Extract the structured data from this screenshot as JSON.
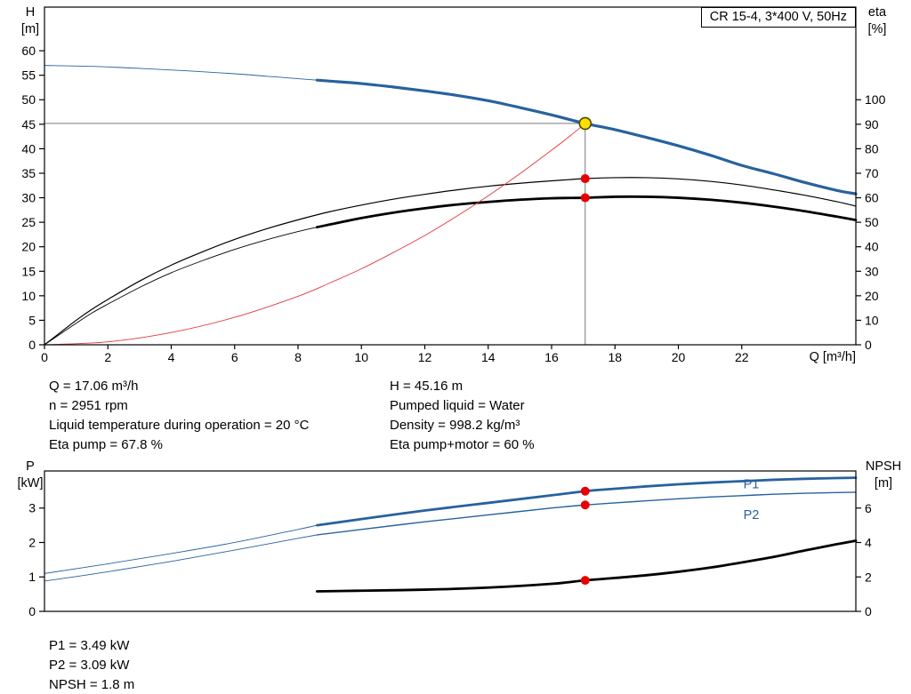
{
  "details": {
    "left": [
      "Q = 17.06 m³/h",
      "n = 2951 rpm",
      "Liquid temperature during operation = 20 °C",
      "Eta pump = 67.8 %"
    ],
    "right": [
      "H = 45.16 m",
      "Pumped liquid = Water",
      "Density = 998.2 kg/m³",
      "Eta pump+motor = 60 %"
    ],
    "bottom": [
      "P1 = 3.49 kW",
      "P2 = 3.09 kW",
      "NPSH = 1.8 m"
    ]
  },
  "colors": {
    "curve_blue": "#27629f",
    "curve_red": "#e0393e",
    "dot_red": "#e60000",
    "duty_yellow": "#ffdf00",
    "crosshair_gray": "#7a7a7a"
  },
  "chart_data": [
    {
      "type": "line",
      "title": "CR 15-4, 3*400 V, 50Hz",
      "x": {
        "name": "Q [m³/h]",
        "min": 0,
        "max": 25.6,
        "ticks": [
          0,
          2,
          4,
          6,
          8,
          10,
          12,
          14,
          16,
          18,
          20,
          22
        ]
      },
      "y_left": {
        "name": "H",
        "unit": "[m]",
        "min": 0,
        "max": 68.9,
        "ticks": [
          0,
          5,
          10,
          15,
          20,
          25,
          30,
          35,
          40,
          45,
          50,
          55,
          60
        ]
      },
      "y_right": {
        "name": "eta",
        "unit": "[%]",
        "min": 0,
        "max": 137.8,
        "ticks": [
          0,
          10,
          20,
          30,
          40,
          50,
          60,
          70,
          80,
          90,
          100
        ]
      },
      "crosshair": {
        "x": 17.06,
        "y": 45.16
      },
      "series": [
        {
          "name": "head-curve-thin",
          "color": "#27629f",
          "width": 0.9,
          "axis": "left",
          "points": [
            [
              0,
              57
            ],
            [
              1.5,
              56.8
            ],
            [
              3,
              56.4
            ],
            [
              4.5,
              55.9
            ],
            [
              6,
              55.3
            ],
            [
              7,
              54.8
            ],
            [
              8,
              54.3
            ],
            [
              8.6,
              54.0
            ]
          ]
        },
        {
          "name": "head-curve",
          "color": "#27629f",
          "width": 3.2,
          "axis": "left",
          "points": [
            [
              8.6,
              54.0
            ],
            [
              10,
              53.3
            ],
            [
              11,
              52.6
            ],
            [
              12,
              51.8
            ],
            [
              13,
              50.9
            ],
            [
              14,
              49.8
            ],
            [
              15,
              48.4
            ],
            [
              16,
              46.9
            ],
            [
              17.06,
              45.16
            ],
            [
              18,
              43.9
            ],
            [
              19,
              42.3
            ],
            [
              20,
              40.6
            ],
            [
              21,
              38.7
            ],
            [
              22,
              36.6
            ],
            [
              23,
              34.9
            ],
            [
              24,
              33.1
            ],
            [
              25,
              31.5
            ],
            [
              25.6,
              30.8
            ]
          ]
        },
        {
          "name": "eta-pump-curve",
          "color": "#000000",
          "width": 1.2,
          "axis": "right",
          "points": [
            [
              0,
              0
            ],
            [
              0.5,
              5
            ],
            [
              1,
              10
            ],
            [
              1.5,
              14.5
            ],
            [
              2,
              18.5
            ],
            [
              3,
              26
            ],
            [
              4,
              32.5
            ],
            [
              5,
              38
            ],
            [
              6,
              43
            ],
            [
              7,
              47.3
            ],
            [
              8,
              51
            ],
            [
              9,
              54.3
            ],
            [
              10,
              57
            ],
            [
              11,
              59.4
            ],
            [
              12,
              61.4
            ],
            [
              13,
              63.2
            ],
            [
              14,
              64.7
            ],
            [
              15,
              65.9
            ],
            [
              16,
              66.9
            ],
            [
              17.06,
              67.8
            ],
            [
              18,
              68.2
            ],
            [
              19,
              68.2
            ],
            [
              20,
              67.7
            ],
            [
              21,
              66.7
            ],
            [
              22,
              65.2
            ],
            [
              23,
              63.2
            ],
            [
              24,
              61
            ],
            [
              25,
              58.4
            ],
            [
              25.6,
              56.6
            ]
          ]
        },
        {
          "name": "eta-pump-motor-thin",
          "color": "#000000",
          "width": 0.9,
          "axis": "right",
          "points": [
            [
              0,
              0
            ],
            [
              0.5,
              4.4
            ],
            [
              1,
              8.8
            ],
            [
              1.5,
              13
            ],
            [
              2,
              16.6
            ],
            [
              3,
              23.4
            ],
            [
              4,
              29.4
            ],
            [
              5,
              34.4
            ],
            [
              6,
              38.9
            ],
            [
              7,
              42.8
            ],
            [
              8,
              46.2
            ],
            [
              8.6,
              48
            ]
          ]
        },
        {
          "name": "eta-pump-motor-curve",
          "color": "#000000",
          "width": 2.8,
          "axis": "right",
          "points": [
            [
              8.6,
              48
            ],
            [
              10,
              51.7
            ],
            [
              11,
              53.9
            ],
            [
              12,
              55.7
            ],
            [
              13,
              57.2
            ],
            [
              14,
              58.3
            ],
            [
              15,
              59.2
            ],
            [
              16,
              59.8
            ],
            [
              17.06,
              60
            ],
            [
              18,
              60.4
            ],
            [
              19,
              60.4
            ],
            [
              20,
              60
            ],
            [
              21,
              59.2
            ],
            [
              22,
              58
            ],
            [
              23,
              56.4
            ],
            [
              24,
              54.5
            ],
            [
              25,
              52.3
            ],
            [
              25.6,
              50.9
            ]
          ]
        },
        {
          "name": "system-curve",
          "color": "#e0393e",
          "width": 0.9,
          "axis": "left",
          "points": [
            [
              0,
              0
            ],
            [
              2,
              0.6
            ],
            [
              4,
              2.5
            ],
            [
              6,
              5.6
            ],
            [
              8,
              9.9
            ],
            [
              9,
              12.6
            ],
            [
              10,
              15.5
            ],
            [
              11,
              18.8
            ],
            [
              12,
              22.3
            ],
            [
              13,
              26.2
            ],
            [
              14,
              30.4
            ],
            [
              15,
              34.9
            ],
            [
              16,
              39.7
            ],
            [
              16.6,
              42.7
            ],
            [
              17.06,
              45.16
            ]
          ]
        }
      ],
      "markers": [
        {
          "name": "duty-point",
          "x": 17.06,
          "y": 45.16,
          "axis": "left",
          "r": 6.5,
          "fill": "#ffdf00",
          "stroke": "#4a4a00"
        },
        {
          "name": "eta-pump-dot",
          "x": 17.06,
          "y": 67.8,
          "axis": "right",
          "r": 5,
          "fill": "#e60000"
        },
        {
          "name": "eta-pump-motor-dot",
          "x": 17.06,
          "y": 60,
          "axis": "right",
          "r": 5,
          "fill": "#e60000"
        }
      ],
      "annotations": []
    },
    {
      "type": "line",
      "title": "",
      "x": {
        "name": "",
        "min": 0,
        "max": 25.6,
        "ticks": []
      },
      "y_left": {
        "name": "P",
        "unit": "[kW]",
        "min": 0,
        "max": 4.077,
        "ticks": [
          0,
          1,
          2,
          3
        ]
      },
      "y_right": {
        "name": "NPSH",
        "unit": "[m]",
        "min": 0,
        "max": 8.155,
        "ticks": [
          0,
          2,
          4,
          6
        ]
      },
      "series": [
        {
          "name": "p1-curve-thin",
          "color": "#27629f",
          "width": 0.9,
          "axis": "left",
          "points": [
            [
              0,
              1.1
            ],
            [
              2,
              1.38
            ],
            [
              4,
              1.68
            ],
            [
              6,
              2.0
            ],
            [
              8,
              2.38
            ],
            [
              8.6,
              2.5
            ]
          ]
        },
        {
          "name": "p1-curve",
          "color": "#27629f",
          "width": 2.8,
          "axis": "left",
          "points": [
            [
              8.6,
              2.5
            ],
            [
              10,
              2.68
            ],
            [
              12,
              2.93
            ],
            [
              14,
              3.15
            ],
            [
              16,
              3.37
            ],
            [
              17.06,
              3.49
            ],
            [
              18,
              3.56
            ],
            [
              19,
              3.63
            ],
            [
              20,
              3.69
            ],
            [
              21,
              3.74
            ],
            [
              22,
              3.78
            ],
            [
              23,
              3.82
            ],
            [
              24,
              3.85
            ],
            [
              25,
              3.87
            ],
            [
              25.6,
              3.88
            ]
          ]
        },
        {
          "name": "p2-curve-thin",
          "color": "#27629f",
          "width": 0.9,
          "axis": "left",
          "points": [
            [
              0,
              0.88
            ],
            [
              2,
              1.15
            ],
            [
              4,
              1.45
            ],
            [
              6,
              1.78
            ],
            [
              8,
              2.12
            ],
            [
              8.6,
              2.22
            ]
          ]
        },
        {
          "name": "p2-curve",
          "color": "#27629f",
          "width": 1.4,
          "axis": "left",
          "points": [
            [
              8.6,
              2.22
            ],
            [
              10,
              2.38
            ],
            [
              12,
              2.6
            ],
            [
              14,
              2.8
            ],
            [
              16,
              3.0
            ],
            [
              17.06,
              3.09
            ],
            [
              18,
              3.15
            ],
            [
              19,
              3.21
            ],
            [
              20,
              3.27
            ],
            [
              21,
              3.32
            ],
            [
              22,
              3.36
            ],
            [
              23,
              3.4
            ],
            [
              24,
              3.43
            ],
            [
              25,
              3.45
            ],
            [
              25.6,
              3.46
            ]
          ]
        },
        {
          "name": "npsh-curve",
          "color": "#000000",
          "width": 2.8,
          "axis": "left",
          "points": [
            [
              8.6,
              0.58
            ],
            [
              10,
              0.6
            ],
            [
              12,
              0.63
            ],
            [
              14,
              0.69
            ],
            [
              16,
              0.8
            ],
            [
              17.06,
              0.9
            ],
            [
              18,
              0.97
            ],
            [
              19,
              1.05
            ],
            [
              20,
              1.15
            ],
            [
              21,
              1.27
            ],
            [
              22,
              1.42
            ],
            [
              23,
              1.58
            ],
            [
              24,
              1.77
            ],
            [
              25,
              1.95
            ],
            [
              25.6,
              2.05
            ]
          ]
        }
      ],
      "markers": [
        {
          "name": "p1-dot",
          "x": 17.06,
          "y": 3.49,
          "axis": "left",
          "r": 5,
          "fill": "#e60000"
        },
        {
          "name": "p2-dot",
          "x": 17.06,
          "y": 3.09,
          "axis": "left",
          "r": 5,
          "fill": "#e60000"
        },
        {
          "name": "npsh-dot",
          "x": 17.06,
          "y": 1.8,
          "axis": "right",
          "r": 5,
          "fill": "#e60000"
        }
      ],
      "annotations": [
        {
          "name": "p1-label",
          "text": "P1",
          "x": 22.3,
          "y": 3.58,
          "axis": "left",
          "color": "#27629f"
        },
        {
          "name": "p2-label",
          "text": "P2",
          "x": 22.3,
          "y": 2.68,
          "axis": "left",
          "color": "#27629f"
        }
      ]
    }
  ]
}
